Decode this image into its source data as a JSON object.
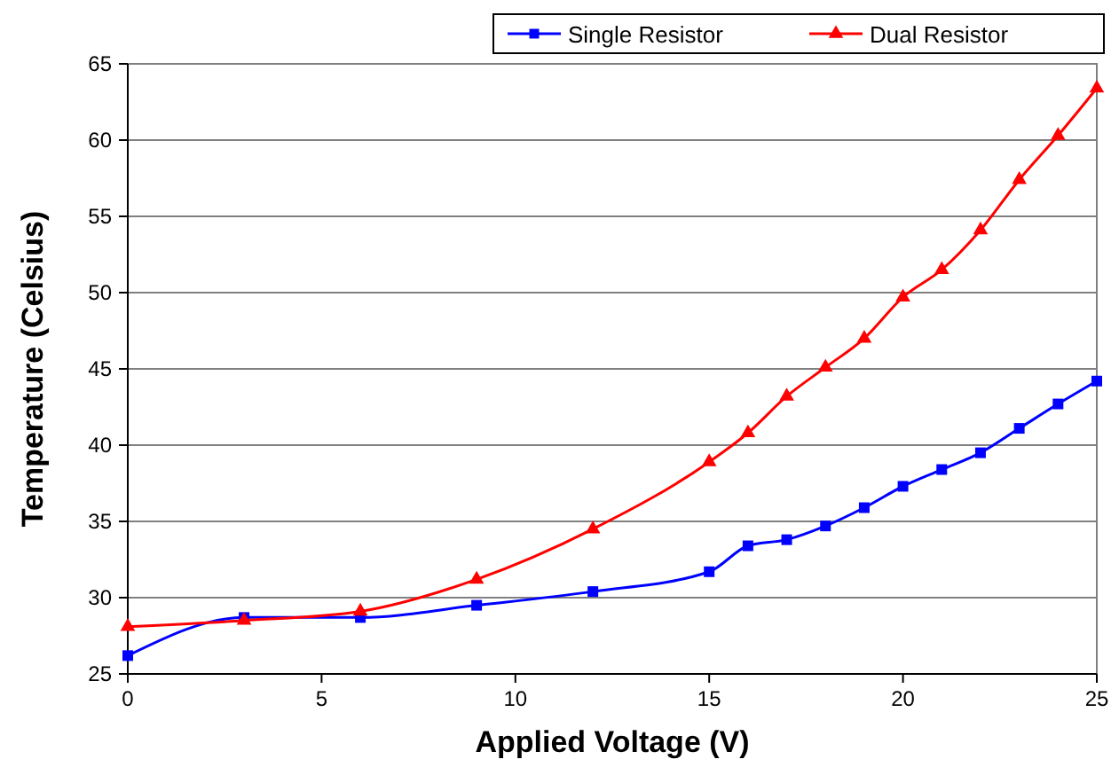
{
  "chart_data": {
    "type": "line",
    "xlabel": "Applied Voltage (V)",
    "ylabel": "Temperature (Celsius)",
    "x": [
      0,
      3,
      6,
      9,
      12,
      15,
      16,
      17,
      18,
      19,
      20,
      21,
      22,
      23,
      24,
      25
    ],
    "series": [
      {
        "name": "Single Resistor",
        "color": "#0000ff",
        "marker": "square",
        "values": [
          26.2,
          28.7,
          28.7,
          29.5,
          30.4,
          31.7,
          33.4,
          33.8,
          34.7,
          35.9,
          37.3,
          38.4,
          39.5,
          41.1,
          42.7,
          44.2
        ]
      },
      {
        "name": "Dual Resistor",
        "color": "#ff0000",
        "marker": "triangle",
        "values": [
          28.1,
          28.5,
          29.1,
          31.2,
          34.5,
          38.9,
          40.8,
          43.2,
          45.1,
          47.0,
          49.7,
          51.5,
          54.1,
          57.4,
          60.3,
          63.4
        ]
      }
    ],
    "xlim": [
      0,
      25
    ],
    "xticks": [
      0,
      5,
      10,
      15,
      20,
      25
    ],
    "ylim": [
      25,
      65
    ],
    "yticks": [
      25,
      30,
      35,
      40,
      45,
      50,
      55,
      60,
      65
    ],
    "grid": "y",
    "legend": "top right"
  }
}
